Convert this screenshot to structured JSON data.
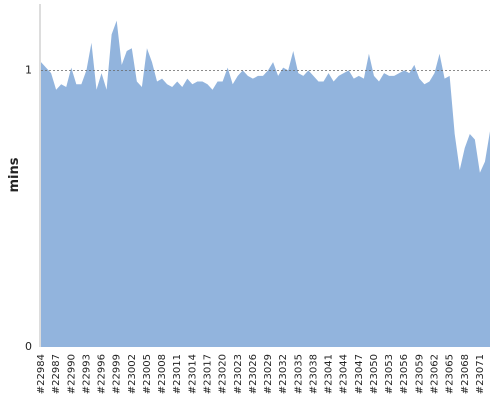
{
  "chart_data": {
    "type": "area",
    "y_label": "mins",
    "color": "#92b4dd",
    "categories": [
      "#22984",
      null,
      null,
      "#22987",
      null,
      null,
      "#22990",
      null,
      null,
      "#22993",
      null,
      null,
      "#22996",
      null,
      null,
      "#22999",
      null,
      null,
      "#23002",
      null,
      null,
      "#23005",
      null,
      null,
      "#23008",
      null,
      null,
      "#23011",
      null,
      null,
      "#23014",
      null,
      null,
      "#23017",
      null,
      null,
      "#23020",
      null,
      null,
      "#23023",
      null,
      null,
      "#23026",
      null,
      null,
      "#23029",
      null,
      null,
      "#23032",
      null,
      null,
      "#23035",
      null,
      null,
      "#23038",
      null,
      null,
      "#23041",
      null,
      null,
      "#23044",
      null,
      null,
      "#23047",
      null,
      null,
      "#23050",
      null,
      null,
      "#23053",
      null,
      null,
      "#23056",
      null,
      null,
      "#23059",
      null,
      null,
      "#23062",
      null,
      null,
      "#23065",
      null,
      null,
      "#23068",
      null,
      null,
      "#23071",
      null,
      null
    ],
    "values": [
      1.03,
      1.01,
      0.99,
      0.93,
      0.95,
      0.94,
      1.01,
      0.95,
      0.95,
      1.0,
      1.1,
      0.93,
      0.99,
      0.93,
      1.13,
      1.18,
      1.02,
      1.07,
      1.08,
      0.96,
      0.94,
      1.08,
      1.03,
      0.96,
      0.97,
      0.95,
      0.94,
      0.96,
      0.94,
      0.97,
      0.95,
      0.96,
      0.96,
      0.95,
      0.93,
      0.96,
      0.96,
      1.01,
      0.95,
      0.98,
      1.0,
      0.98,
      0.97,
      0.98,
      0.98,
      1.0,
      1.03,
      0.98,
      1.01,
      1.0,
      1.07,
      0.99,
      0.98,
      1.0,
      0.98,
      0.96,
      0.96,
      0.99,
      0.96,
      0.98,
      0.99,
      1.0,
      0.97,
      0.98,
      0.97,
      1.06,
      0.98,
      0.96,
      0.99,
      0.98,
      0.98,
      0.99,
      1.0,
      0.99,
      1.02,
      0.97,
      0.95,
      0.96,
      0.99,
      1.06,
      0.97,
      0.98,
      0.77,
      0.64,
      0.72,
      0.77,
      0.75,
      0.63,
      0.67,
      0.78
    ],
    "ylim": [
      0,
      1.24
    ],
    "yticks": [
      0,
      1
    ],
    "grid": true
  }
}
